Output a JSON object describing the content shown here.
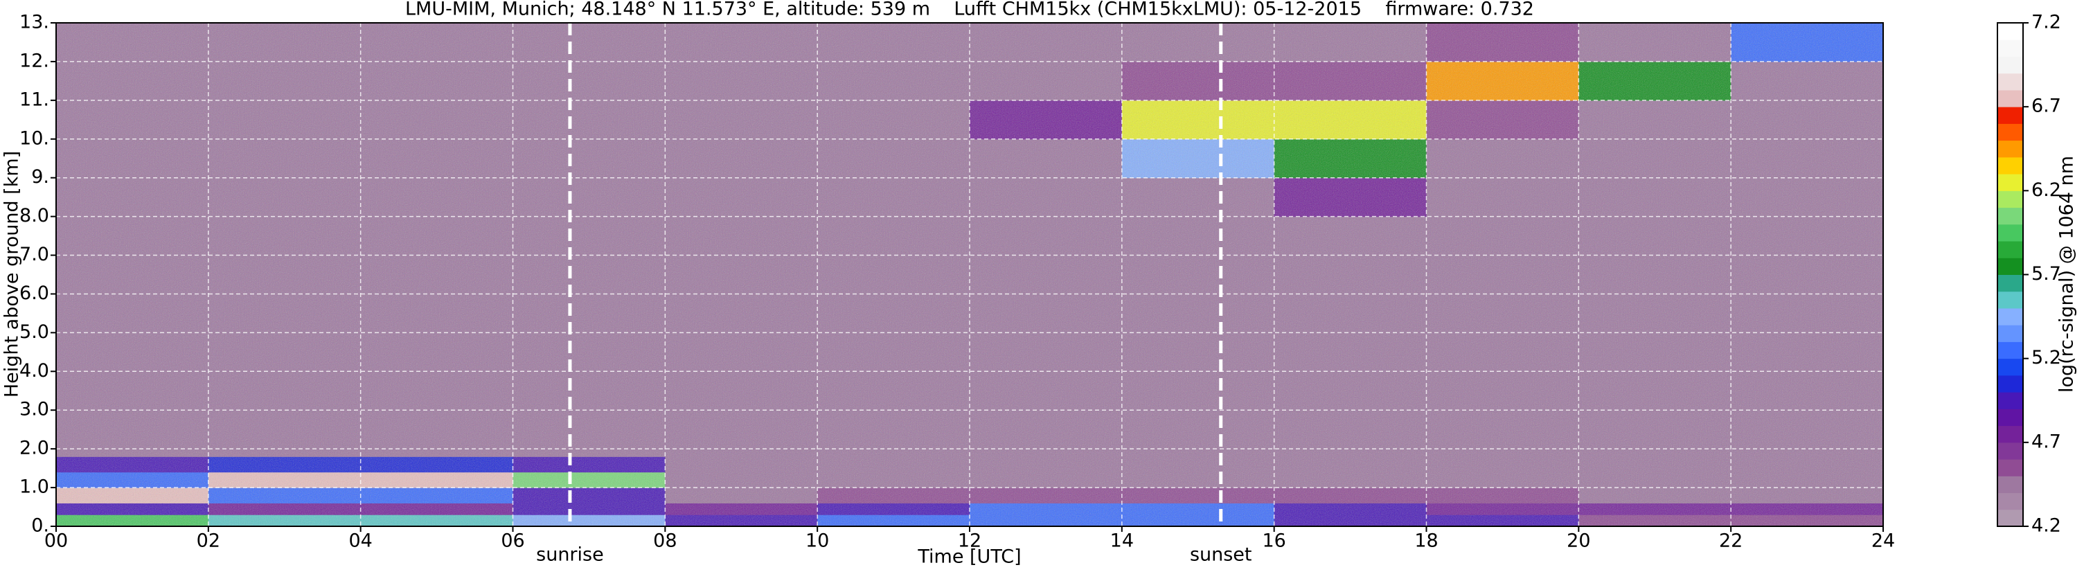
{
  "chart_data": {
    "type": "heatmap",
    "title": "LMU-MIM, Munich; 48.148° N 11.573° E, altitude: 539 m    Lufft CHM15kx (CHM15kxLMU): 05-12-2015    firmware: 0.732",
    "x_label": "Time [UTC]",
    "y_label": "Height above ground [km]",
    "colorbar_label": "log(rc-signal) @ 1064 nm",
    "x_edges": [
      0,
      2,
      4,
      6,
      8,
      10,
      12,
      14,
      16,
      18,
      20,
      22,
      24
    ],
    "y_edges": [
      0,
      0.3,
      0.6,
      1.0,
      1.4,
      1.8,
      2.5,
      4,
      6,
      8,
      9,
      10,
      11,
      12,
      13
    ],
    "z": [
      [
        5.9,
        5.6,
        5.6,
        5.4,
        5.0,
        5.2,
        5.3,
        5.3,
        5.0,
        4.9,
        4.6,
        4.6
      ],
      [
        5.0,
        4.8,
        4.8,
        4.9,
        4.8,
        4.9,
        5.2,
        5.2,
        4.9,
        4.8,
        4.7,
        4.7
      ],
      [
        6.8,
        5.3,
        5.3,
        5.0,
        4.5,
        4.6,
        4.6,
        4.6,
        4.6,
        4.6,
        4.5,
        4.5
      ],
      [
        5.2,
        6.8,
        6.8,
        6.0,
        4.4,
        4.4,
        4.4,
        4.4,
        4.4,
        4.4,
        4.4,
        4.4
      ],
      [
        5.0,
        5.1,
        5.1,
        5.0,
        4.4,
        4.4,
        4.4,
        4.4,
        4.4,
        4.4,
        4.4,
        4.4
      ],
      [
        4.4,
        4.4,
        4.4,
        4.4,
        4.4,
        4.4,
        4.4,
        4.4,
        4.4,
        4.4,
        4.4,
        4.4
      ],
      [
        4.4,
        4.4,
        4.4,
        4.4,
        4.4,
        4.4,
        4.4,
        4.4,
        4.4,
        4.4,
        4.4,
        4.4
      ],
      [
        4.5,
        4.5,
        4.5,
        4.5,
        4.5,
        4.5,
        4.5,
        4.5,
        4.5,
        4.5,
        4.5,
        4.5
      ],
      [
        4.5,
        4.5,
        4.5,
        4.5,
        4.5,
        4.5,
        4.5,
        4.5,
        4.5,
        4.5,
        4.5,
        4.5
      ],
      [
        4.5,
        4.5,
        4.5,
        4.5,
        4.5,
        4.5,
        4.5,
        4.5,
        4.7,
        4.5,
        4.5,
        4.5
      ],
      [
        4.5,
        4.5,
        4.5,
        4.5,
        4.5,
        4.5,
        4.5,
        5.5,
        5.8,
        4.5,
        4.5,
        4.5
      ],
      [
        4.5,
        4.5,
        4.5,
        4.5,
        4.5,
        4.5,
        4.8,
        6.3,
        6.3,
        4.6,
        4.5,
        4.5
      ],
      [
        4.5,
        4.5,
        4.5,
        4.5,
        4.5,
        4.5,
        4.5,
        4.6,
        4.6,
        6.4,
        5.8,
        4.5
      ],
      [
        4.5,
        4.5,
        4.5,
        4.5,
        4.5,
        4.5,
        4.5,
        4.5,
        4.5,
        4.6,
        4.5,
        5.3
      ]
    ],
    "xlim": [
      0,
      24
    ],
    "ylim": [
      0,
      13
    ],
    "xticks": [
      {
        "value": 0,
        "label": "00"
      },
      {
        "value": 2,
        "label": "02"
      },
      {
        "value": 4,
        "label": "04"
      },
      {
        "value": 6,
        "label": "06"
      },
      {
        "value": 8,
        "label": "08"
      },
      {
        "value": 10,
        "label": "10"
      },
      {
        "value": 12,
        "label": "12"
      },
      {
        "value": 14,
        "label": "14"
      },
      {
        "value": 16,
        "label": "16"
      },
      {
        "value": 18,
        "label": "18"
      },
      {
        "value": 20,
        "label": "20"
      },
      {
        "value": 22,
        "label": "22"
      },
      {
        "value": 24,
        "label": "24"
      }
    ],
    "yticks": [
      {
        "value": 0,
        "label": "0."
      },
      {
        "value": 1,
        "label": "1.0"
      },
      {
        "value": 2,
        "label": "2.0"
      },
      {
        "value": 3,
        "label": "3.0"
      },
      {
        "value": 4,
        "label": "4.0"
      },
      {
        "value": 5,
        "label": "5.0"
      },
      {
        "value": 6,
        "label": "6.0"
      },
      {
        "value": 7,
        "label": "7.0"
      },
      {
        "value": 8,
        "label": "8.0"
      },
      {
        "value": 9,
        "label": "9."
      },
      {
        "value": 10,
        "label": "10."
      },
      {
        "value": 11,
        "label": "11."
      },
      {
        "value": 12,
        "label": "12."
      },
      {
        "value": 13,
        "label": "13."
      }
    ],
    "clim": [
      4.2,
      7.2
    ],
    "cticks": [
      4.2,
      4.7,
      5.2,
      5.7,
      6.2,
      6.7,
      7.2
    ],
    "colormap": [
      "#b09ab0",
      "#a888a8",
      "#9e78a0",
      "#904c94",
      "#823898",
      "#74229a",
      "#6014a4",
      "#4818b8",
      "#1e28d8",
      "#1848f0",
      "#3a6cff",
      "#6494ff",
      "#86b0ff",
      "#5cc8c8",
      "#2aa88a",
      "#149020",
      "#28aa38",
      "#48c860",
      "#7ad87a",
      "#aaea60",
      "#e8f030",
      "#ffd000",
      "#ff9a00",
      "#ff5a00",
      "#f02000",
      "#e8c0c0",
      "#eedcdc",
      "#f4f4f4",
      "#f8f8f8",
      "#ffffff"
    ],
    "grid": true,
    "annotations": [
      {
        "x": 6.75,
        "label": "sunrise"
      },
      {
        "x": 15.3,
        "label": "sunset"
      }
    ]
  }
}
